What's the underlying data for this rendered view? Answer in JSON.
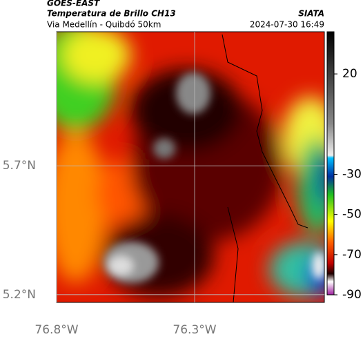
{
  "header": {
    "satellite": "GOES-EAST",
    "product": "Temperatura de Brillo CH13",
    "region": "Via Medellín - Quibdó 50km",
    "source": "SIATA",
    "timestamp": "2024-07-30 16:49"
  },
  "map": {
    "xlim": [
      -76.8,
      -75.83
    ],
    "ylim": [
      5.17,
      6.22
    ],
    "xticks": [
      {
        "value": -76.8,
        "label": "76.8°W"
      },
      {
        "value": -76.3,
        "label": "76.3°W"
      }
    ],
    "yticks": [
      {
        "value": 5.2,
        "label": "5.2°N"
      },
      {
        "value": 5.7,
        "label": "5.7°N"
      }
    ],
    "grid": true
  },
  "colorbar": {
    "ylim": [
      -90,
      41
    ],
    "yticks": [
      20,
      -30,
      -50,
      -70,
      -90
    ]
  }
}
